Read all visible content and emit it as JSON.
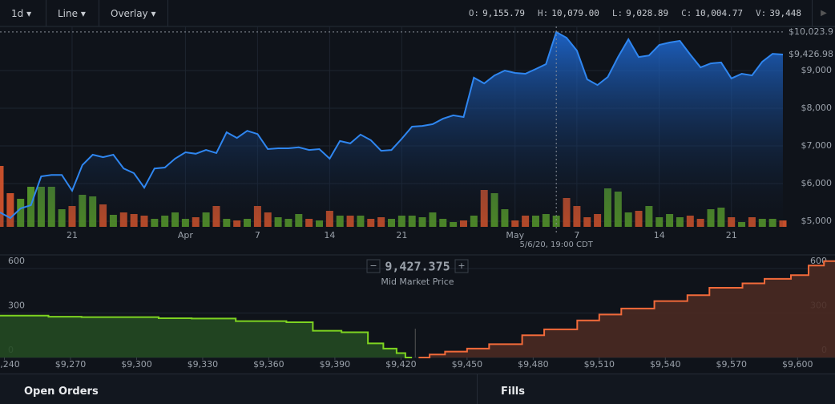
{
  "toolbar": {
    "interval": "1d",
    "style": "Line",
    "overlay": "Overlay"
  },
  "ohlc": [
    {
      "label": "O:",
      "value": "9,155.79"
    },
    {
      "label": "H:",
      "value": "10,079.00"
    },
    {
      "label": "L:",
      "value": "9,028.89"
    },
    {
      "label": "C:",
      "value": "10,004.77"
    },
    {
      "label": "V:",
      "value": "39,448"
    }
  ],
  "price_chart": {
    "type": "line",
    "color": "#2f86f0",
    "values": [
      5234,
      5085,
      5340,
      5425,
      6190,
      6230,
      6230,
      5810,
      6490,
      6765,
      6700,
      6765,
      6400,
      6275,
      5890,
      6400,
      6425,
      6660,
      6830,
      6790,
      6890,
      6810,
      7360,
      7210,
      7400,
      7315,
      6915,
      6935,
      6935,
      6960,
      6890,
      6915,
      6660,
      7130,
      7065,
      7300,
      7150,
      6870,
      6890,
      7190,
      7510,
      7530,
      7575,
      7720,
      7810,
      7765,
      8810,
      8660,
      8870,
      9000,
      8935,
      8915,
      9040,
      9170,
      10020,
      9870,
      9530,
      8765,
      8615,
      8830,
      9360,
      9830,
      9360,
      9400,
      9680,
      9745,
      9790,
      9425,
      9085,
      9190,
      9215,
      8790,
      8915,
      8870,
      9235,
      9445,
      9425
    ],
    "volumes": [
      76,
      42,
      35,
      50,
      50,
      50,
      22,
      26,
      40,
      38,
      28,
      15,
      18,
      16,
      14,
      10,
      14,
      18,
      10,
      12,
      18,
      26,
      10,
      8,
      10,
      26,
      18,
      12,
      10,
      16,
      10,
      8,
      20,
      14,
      14,
      14,
      10,
      12,
      10,
      14,
      14,
      12,
      18,
      10,
      6,
      8,
      14,
      46,
      42,
      22,
      8,
      14,
      14,
      16,
      14,
      36,
      26,
      12,
      16,
      48,
      44,
      18,
      20,
      26,
      12,
      16,
      12,
      14,
      10,
      22,
      24,
      12,
      6,
      12,
      10,
      10,
      8
    ],
    "ylim": [
      4850,
      10170
    ],
    "yticks": [
      {
        "value": 5000,
        "label": "$5,000"
      },
      {
        "value": 6000,
        "label": "$6,000"
      },
      {
        "value": 7000,
        "label": "$7,000"
      },
      {
        "value": 8000,
        "label": "$8,000"
      },
      {
        "value": 9000,
        "label": "$9,000"
      }
    ],
    "xticks": [
      {
        "value": 7,
        "label": "21"
      },
      {
        "value": 18,
        "label": "Apr"
      },
      {
        "value": 25,
        "label": "7"
      },
      {
        "value": 32,
        "label": "14"
      },
      {
        "value": 39,
        "label": "21"
      },
      {
        "value": 50,
        "label": "May"
      },
      {
        "value": 56,
        "label": "7"
      },
      {
        "value": 64,
        "label": "14"
      },
      {
        "value": 71,
        "label": "21"
      }
    ],
    "high_label": {
      "value": 10023.9,
      "label": "$10,023.9"
    },
    "last_label": {
      "value": 9426.98,
      "label": "$9,426.98"
    },
    "crosshair": {
      "index": 54,
      "label": "5/6/20, 19:00 CDT"
    }
  },
  "depth_chart": {
    "type": "step-area",
    "bids": {
      "color": "#7ed321",
      "price": [
        9238,
        9260,
        9275,
        9310,
        9325,
        9345,
        9368,
        9380,
        9393,
        9405,
        9412,
        9418,
        9422,
        9425
      ],
      "cum": [
        285,
        282,
        275,
        272,
        265,
        263,
        245,
        238,
        180,
        170,
        95,
        60,
        30,
        0
      ]
    },
    "asks": {
      "color": "#f26a3a",
      "price": [
        9428,
        9433,
        9440,
        9450,
        9460,
        9475,
        9485,
        9500,
        9510,
        9520,
        9535,
        9550,
        9560,
        9575,
        9585,
        9597,
        9605,
        9612,
        9617
      ],
      "cum": [
        0,
        20,
        40,
        60,
        90,
        150,
        190,
        250,
        290,
        330,
        380,
        420,
        470,
        500,
        530,
        555,
        620,
        650,
        650
      ]
    },
    "xlim": [
      9238,
      9617
    ],
    "ylim": [
      0,
      670
    ],
    "yticks": [
      0,
      300,
      600
    ],
    "xticks": [
      {
        "value": 9240,
        "label": "$9,240"
      },
      {
        "value": 9270,
        "label": "$9,270"
      },
      {
        "value": 9300,
        "label": "$9,300"
      },
      {
        "value": 9330,
        "label": "$9,330"
      },
      {
        "value": 9360,
        "label": "$9,360"
      },
      {
        "value": 9390,
        "label": "$9,390"
      },
      {
        "value": 9420,
        "label": "$9,420"
      },
      {
        "value": 9450,
        "label": "$9,450"
      },
      {
        "value": 9480,
        "label": "$9,480"
      },
      {
        "value": 9510,
        "label": "$9,510"
      },
      {
        "value": 9540,
        "label": "$9,540"
      },
      {
        "value": 9570,
        "label": "$9,570"
      },
      {
        "value": 9600,
        "label": "$9,600"
      }
    ],
    "mid_price": {
      "value": "9,427.375",
      "label": "Mid Market Price"
    }
  },
  "tabs": [
    "Open Orders",
    "Fills"
  ]
}
